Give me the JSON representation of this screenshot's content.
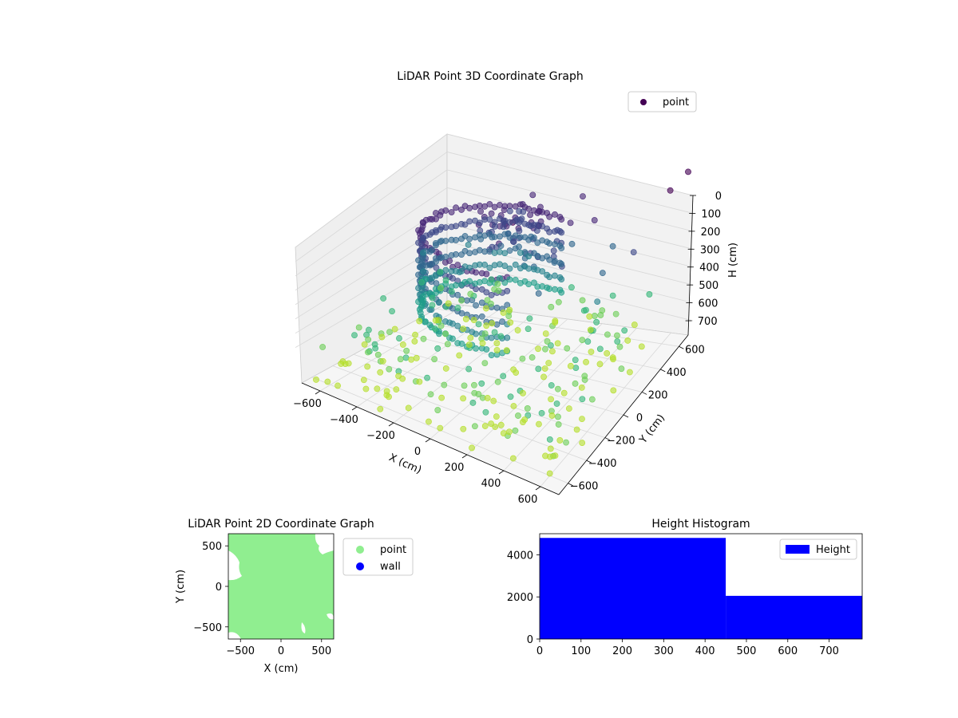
{
  "chart_data": [
    {
      "type": "scatter",
      "title": "LiDAR Point 3D Coordinate Graph",
      "xlabel": "X (cm)",
      "ylabel": "Y (cm)",
      "zlabel": "H (cm)",
      "xlim": [
        -700,
        700
      ],
      "ylim": [
        -700,
        700
      ],
      "zlim": [
        0,
        780
      ],
      "z_inverted": true,
      "xticks": [
        "−600",
        "−400",
        "−200",
        "0",
        "200",
        "400",
        "600"
      ],
      "yticks": [
        "−600",
        "−400",
        "−200",
        "0",
        "200",
        "400",
        "600"
      ],
      "zticks": [
        "0",
        "100",
        "200",
        "300",
        "400",
        "500",
        "600",
        "700"
      ],
      "legend": [
        "point"
      ],
      "legend_position": "top-right",
      "colormap": "viridis",
      "grid": true,
      "point_color_sample": "#440154",
      "points": [
        [
          -650,
          -650,
          760
        ],
        [
          -620,
          -420,
          740
        ],
        [
          -560,
          -600,
          770
        ],
        [
          -480,
          -300,
          720
        ],
        [
          -400,
          -500,
          760
        ],
        [
          -300,
          -650,
          770
        ],
        [
          -200,
          -550,
          765
        ],
        [
          0,
          -600,
          770
        ],
        [
          200,
          -650,
          770
        ],
        [
          400,
          -600,
          770
        ],
        [
          550,
          -500,
          760
        ],
        [
          650,
          -350,
          740
        ],
        [
          600,
          -600,
          770
        ],
        [
          300,
          -450,
          750
        ],
        [
          -100,
          -400,
          740
        ],
        [
          -350,
          -200,
          700
        ],
        [
          500,
          -200,
          700
        ],
        [
          -600,
          -100,
          700
        ],
        [
          100,
          -300,
          720
        ],
        [
          -250,
          -350,
          730
        ],
        [
          -600,
          300,
          420
        ],
        [
          -500,
          150,
          480
        ],
        [
          -300,
          350,
          320
        ],
        [
          200,
          200,
          250
        ],
        [
          300,
          100,
          230
        ],
        [
          50,
          300,
          200
        ],
        [
          -100,
          200,
          260
        ],
        [
          150,
          50,
          180
        ],
        [
          400,
          450,
          280
        ],
        [
          -150,
          450,
          240
        ],
        [
          250,
          -50,
          300
        ],
        [
          450,
          250,
          300
        ],
        [
          0,
          0,
          150
        ],
        [
          -50,
          100,
          120
        ],
        [
          100,
          150,
          90
        ],
        [
          50,
          50,
          60
        ],
        [
          -250,
          50,
          360
        ],
        [
          350,
          350,
          120
        ],
        [
          500,
          100,
          350
        ],
        [
          -400,
          400,
          380
        ],
        [
          200,
          500,
          100
        ],
        [
          600,
          300,
          200
        ],
        [
          650,
          600,
          60
        ],
        [
          700,
          700,
          20
        ],
        [
          -500,
          -200,
          620
        ],
        [
          -550,
          200,
          520
        ],
        [
          -650,
          0,
          560
        ],
        [
          -450,
          -400,
          650
        ]
      ]
    },
    {
      "type": "scatter",
      "title": "LiDAR Point 2D Coordinate Graph",
      "xlabel": "X (cm)",
      "ylabel": "Y (cm)",
      "xlim": [
        -650,
        650
      ],
      "ylim": [
        -650,
        650
      ],
      "xticks": [
        "−500",
        "0",
        "500"
      ],
      "yticks": [
        "500",
        "0",
        "−500"
      ],
      "legend": [
        "point",
        "wall"
      ],
      "series_colors": {
        "point": "#90ee90",
        "wall": "#0000ff"
      },
      "legend_position": "outside-right"
    },
    {
      "type": "bar",
      "title": "Height Histogram",
      "legend": [
        "Height"
      ],
      "legend_position": "top-right",
      "bar_color": "#0000ff",
      "xlim": [
        0,
        780
      ],
      "ylim": [
        0,
        5000
      ],
      "xticks": [
        "0",
        "100",
        "200",
        "300",
        "400",
        "500",
        "600",
        "700"
      ],
      "yticks": [
        "0",
        "2000",
        "4000"
      ],
      "bins": [
        {
          "from": 0,
          "to": 450,
          "count": 4800
        },
        {
          "from": 450,
          "to": 780,
          "count": 2050
        }
      ]
    }
  ]
}
